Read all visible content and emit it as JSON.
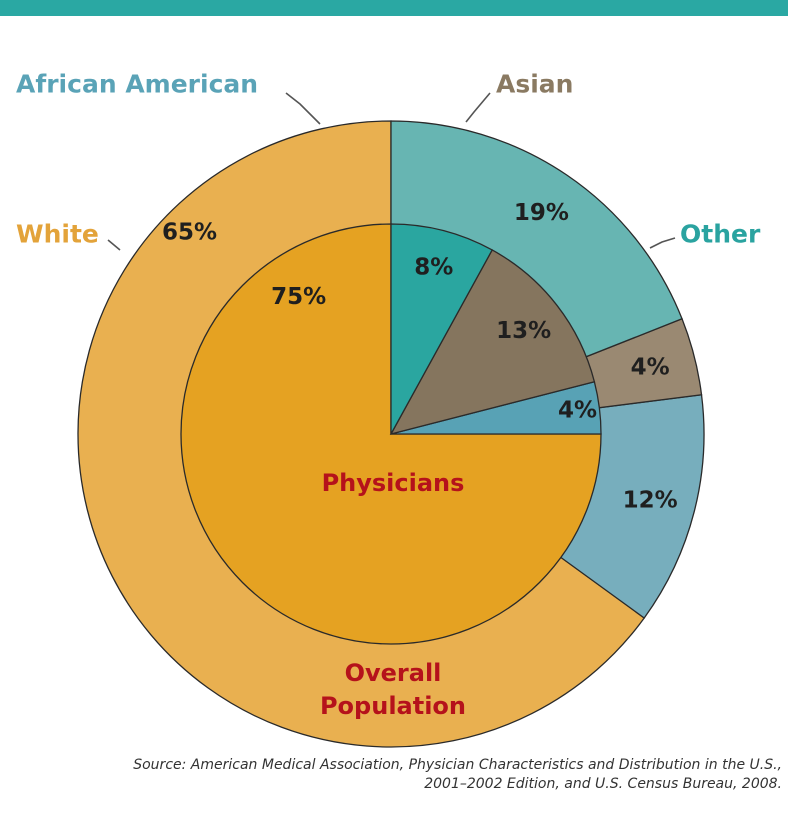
{
  "colors": {
    "header": "#2aa8a3",
    "white_outer": "#e9b050",
    "white_inner": "#e5a222",
    "african_american_outer": "#77aebd",
    "african_american_inner": "#58a2b5",
    "asian_outer": "#9a8972",
    "asian_inner": "#85755e",
    "other_outer": "#67b5b2",
    "other_inner": "#2aa6a0",
    "center_label": "#b5121b",
    "label_white": "#e3a33a",
    "label_african_american": "#5aa3b7",
    "label_asian": "#8a7a62",
    "label_other": "#2aa3a0"
  },
  "chart_data": {
    "type": "pie",
    "subtype": "nested-donut",
    "categories": [
      "White",
      "African American",
      "Asian",
      "Other"
    ],
    "series": [
      {
        "name": "Overall Population",
        "values": [
          65,
          12,
          4,
          19
        ],
        "value_labels": [
          "65%",
          "12%",
          "4%",
          "19%"
        ]
      },
      {
        "name": "Physicians",
        "values": [
          75,
          4,
          13,
          8
        ],
        "value_labels": [
          "75%",
          "4%",
          "13%",
          "8%"
        ]
      }
    ],
    "category_labels": {
      "white": "White",
      "african_american": "African American",
      "asian": "Asian",
      "other": "Other"
    },
    "inner_label": "Physicians",
    "outer_label_line1": "Overall",
    "outer_label_line2": "Population"
  },
  "source": {
    "line1": "Source: American Medical Association, Physician Characteristics and Distribution in the U.S.,",
    "line2": "2001–2002 Edition, and U.S. Census Bureau, 2008."
  }
}
